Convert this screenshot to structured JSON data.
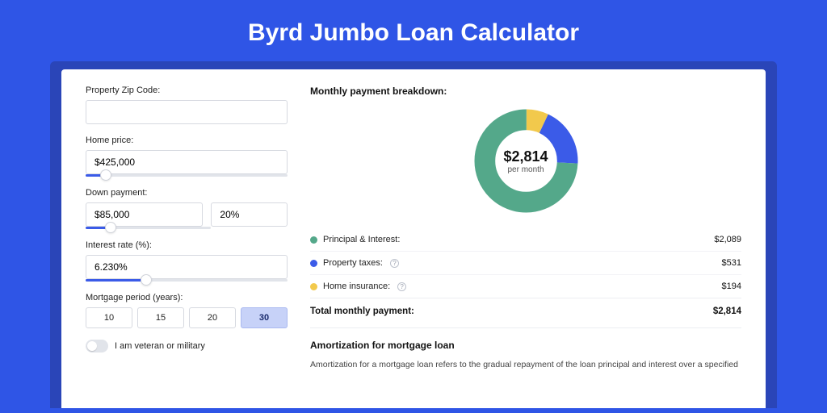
{
  "page_title": "Byrd Jumbo Loan Calculator",
  "form": {
    "zip": {
      "label": "Property Zip Code:",
      "value": ""
    },
    "home_price": {
      "label": "Home price:",
      "value": "$425,000",
      "slider_pct": 10
    },
    "down_payment": {
      "label": "Down payment:",
      "value": "$85,000",
      "pct_value": "20%",
      "slider_pct": 20
    },
    "interest_rate": {
      "label": "Interest rate (%):",
      "value": "6.230%",
      "slider_pct": 30
    },
    "mortgage_period": {
      "label": "Mortgage period (years):",
      "options": [
        "10",
        "15",
        "20",
        "30"
      ],
      "active_index": 3
    },
    "veteran_toggle": {
      "label": "I am veteran or military",
      "on": false
    }
  },
  "breakdown": {
    "title": "Monthly payment breakdown:",
    "donut": {
      "amount": "$2,814",
      "sub": "per month",
      "segments": [
        {
          "label": "Principal & Interest",
          "value": 2089,
          "color": "#54a88a",
          "pct": 74.2
        },
        {
          "label": "Property taxes",
          "value": 531,
          "color": "#3b5be8",
          "pct": 18.9
        },
        {
          "label": "Home insurance",
          "value": 194,
          "color": "#f2c94c",
          "pct": 6.9
        }
      ]
    },
    "rows": [
      {
        "label": "Principal & Interest:",
        "color": "#54a88a",
        "value": "$2,089",
        "info": false
      },
      {
        "label": "Property taxes:",
        "color": "#3b5be8",
        "value": "$531",
        "info": true
      },
      {
        "label": "Home insurance:",
        "color": "#f2c94c",
        "value": "$194",
        "info": true
      }
    ],
    "total": {
      "label": "Total monthly payment:",
      "value": "$2,814"
    }
  },
  "amortization": {
    "title": "Amortization for mortgage loan",
    "text": "Amortization for a mortgage loan refers to the gradual repayment of the loan principal and interest over a specified"
  },
  "colors": {
    "page_bg": "#2f55e6",
    "card_shadow": "#2a45b8",
    "accent": "#3b5be8"
  }
}
